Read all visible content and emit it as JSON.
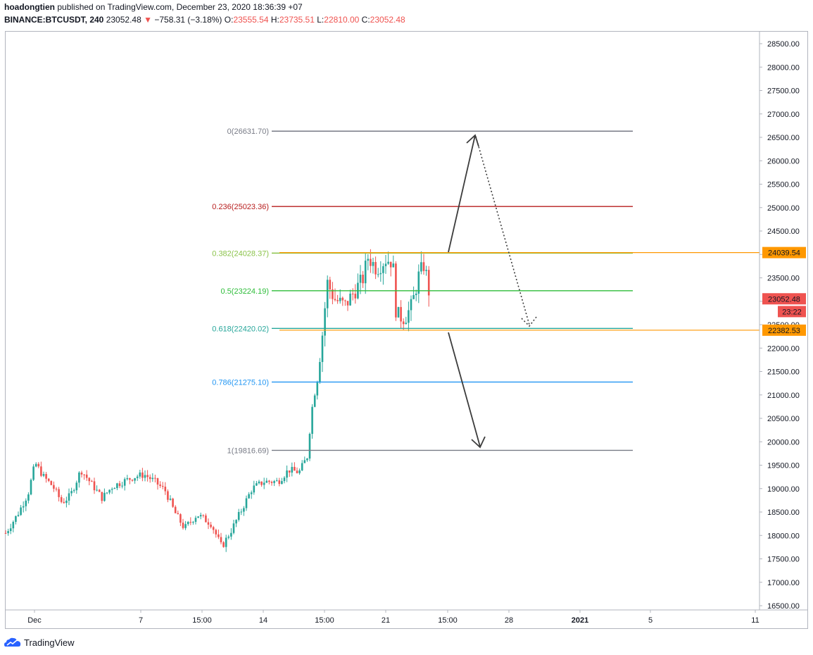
{
  "header": {
    "author": "hoadongtien",
    "published": "published on TradingView.com, December 23, 2020 18:36:39 +07",
    "symbol": "BINANCE:BTCUSDT, 240",
    "last": "23052.48",
    "change_arrow": "▼",
    "change": "−758.31 (−3.18%)",
    "o_label": "O:",
    "o_value": "23555.54",
    "h_label": "H:",
    "h_value": "23735.51",
    "l_label": "L:",
    "l_value": "22810.00",
    "c_label": "C:",
    "c_value": "23052.48"
  },
  "price_axis": {
    "ticks": [
      "28500.00",
      "28000.00",
      "27500.00",
      "27000.00",
      "26500.00",
      "26000.00",
      "25500.00",
      "25000.00",
      "24500.00",
      "24000.00",
      "23500.00",
      "23000.00",
      "22500.00",
      "22000.00",
      "21500.00",
      "21000.00",
      "20500.00",
      "20000.00",
      "19500.00",
      "19000.00",
      "18500.00",
      "18000.00",
      "17500.00",
      "17000.00",
      "16500.00"
    ]
  },
  "time_axis": {
    "labels": [
      {
        "text": "Dec",
        "bold": false
      },
      {
        "text": "7",
        "bold": false
      },
      {
        "text": "15:00",
        "bold": false
      },
      {
        "text": "14",
        "bold": false
      },
      {
        "text": "15:00",
        "bold": false
      },
      {
        "text": "21",
        "bold": false
      },
      {
        "text": "15:00",
        "bold": false
      },
      {
        "text": "28",
        "bold": false
      },
      {
        "text": "2021",
        "bold": true
      },
      {
        "text": "5",
        "bold": false
      },
      {
        "text": "11",
        "bold": false
      }
    ]
  },
  "fib_levels": [
    {
      "label": "0(26631.70)",
      "price": 26631.7,
      "color": "#787b86"
    },
    {
      "label": "0.236(25023.36)",
      "price": 25023.36,
      "color": "#b71c1c"
    },
    {
      "label": "0.382(24028.37)",
      "price": 24028.37,
      "color": "#8bc34a"
    },
    {
      "label": "0.5(23224.19)",
      "price": 23224.19,
      "color": "#2ebd3a"
    },
    {
      "label": "0.618(22420.02)",
      "price": 22420.02,
      "color": "#26a69a"
    },
    {
      "label": "0.786(21275.10)",
      "price": 21275.1,
      "color": "#2196f3"
    },
    {
      "label": "1(19816.69)",
      "price": 19816.69,
      "color": "#787b86"
    }
  ],
  "price_tags": [
    {
      "text": "24039.54",
      "price": 24039.54,
      "color": "#ff9800",
      "text_color": "#131722"
    },
    {
      "text": "23052.48",
      "price": 23052.48,
      "color": "#ef5350",
      "text_color": "#ffffff"
    },
    {
      "text": "23:22",
      "price": 22780,
      "color": "#ef5350",
      "text_color": "#ffffff"
    },
    {
      "text": "22382.53",
      "price": 22382.53,
      "color": "#ff9800",
      "text_color": "#131722"
    }
  ],
  "colors": {
    "up": "#26a69a",
    "down": "#ef5350",
    "horizontal_ray": "#ff9800",
    "arrow": "#3c3c3c",
    "brand": "#2962ff"
  },
  "footer": {
    "brand": "TradingView",
    "logo_icon": "tradingview-cloud-icon"
  }
}
